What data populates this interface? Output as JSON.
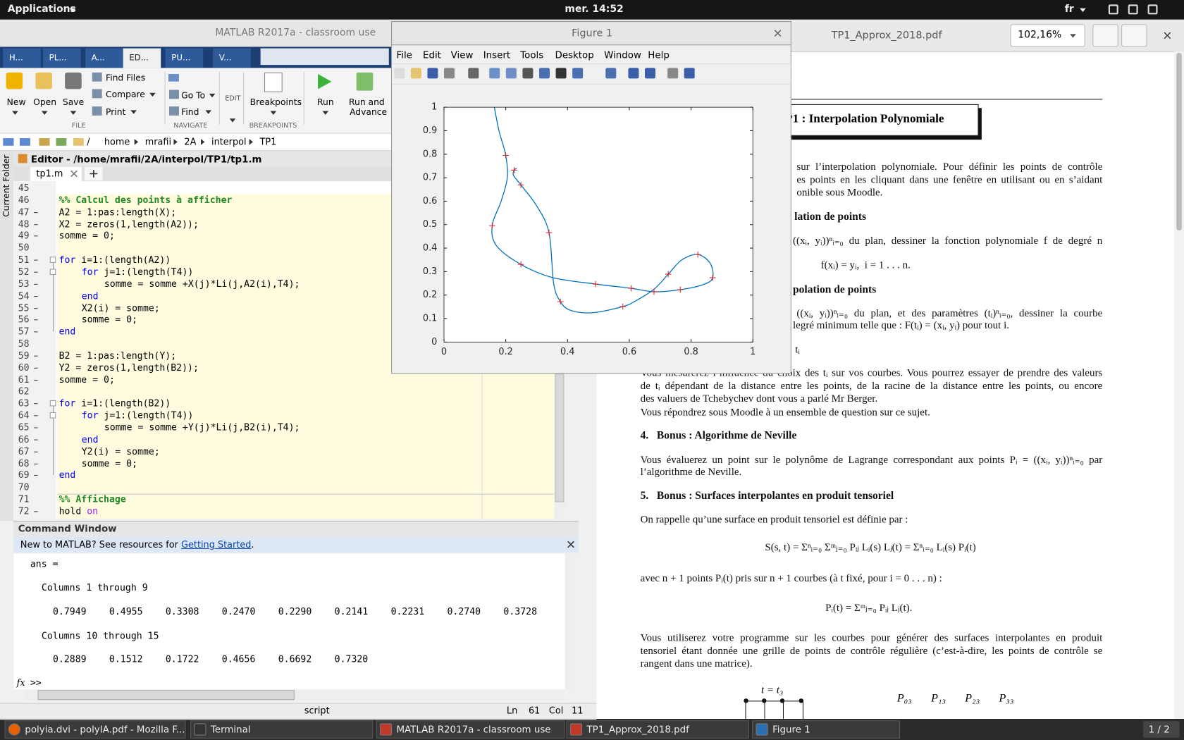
{
  "top_bar": {
    "menu": "Applications",
    "clock": "mer. 14:52",
    "language": "fr"
  },
  "matlab": {
    "title": "MATLAB R2017a - classroom use",
    "tabs": [
      "H...",
      "PL...",
      "A...",
      "ED...",
      "PU...",
      "V..."
    ],
    "toolstrip": {
      "new": "New",
      "open": "Open",
      "save": "Save",
      "find_files": "Find Files",
      "compare": "Compare",
      "print": "Print",
      "go_to": "Go To",
      "find": "Find",
      "edit": "EDIT",
      "breakpoints": "Breakpoints",
      "run": "Run",
      "run_advance": [
        "Run and",
        "Advance"
      ],
      "sections": [
        "FILE",
        "NAVIGATE",
        "BREAKPOINTS"
      ]
    },
    "path": [
      "/",
      "home",
      "mrafii",
      "2A",
      "interpol",
      "TP1"
    ],
    "current_folder": "Current Folder",
    "editor_title": "Editor - /home/mrafii/2A/interpol/TP1/tp1.m",
    "file_tab": "tp1.m",
    "code": [
      {
        "n": "45",
        "indent": 0,
        "parts": []
      },
      {
        "n": "46",
        "indent": 0,
        "parts": [
          {
            "t": "%% Calcul des points à afficher",
            "k": "comment"
          }
        ]
      },
      {
        "n": "47",
        "indent": 0,
        "parts": [
          {
            "t": "A2 = 1:pas:length(X);",
            "k": "code"
          }
        ]
      },
      {
        "n": "48",
        "indent": 0,
        "parts": [
          {
            "t": "X2 = zeros(1,length(A2));",
            "k": "code"
          }
        ]
      },
      {
        "n": "49",
        "indent": 0,
        "parts": [
          {
            "t": "somme = 0;",
            "k": "code"
          }
        ]
      },
      {
        "n": "50",
        "indent": 0,
        "parts": []
      },
      {
        "n": "51",
        "indent": 0,
        "parts": [
          {
            "t": "for",
            "k": "keyword"
          },
          {
            "t": " i=1:(length(A2))",
            "k": "code"
          }
        ]
      },
      {
        "n": "52",
        "indent": 4,
        "parts": [
          {
            "t": "for",
            "k": "keyword"
          },
          {
            "t": " j=1:(length(T4))",
            "k": "code"
          }
        ]
      },
      {
        "n": "53",
        "indent": 8,
        "parts": [
          {
            "t": "somme = somme +X(j)*Li(j,A2(i),T4);",
            "k": "code"
          }
        ]
      },
      {
        "n": "54",
        "indent": 4,
        "parts": [
          {
            "t": "end",
            "k": "keyword"
          }
        ]
      },
      {
        "n": "55",
        "indent": 4,
        "parts": [
          {
            "t": "X2(i) = somme;",
            "k": "code"
          }
        ]
      },
      {
        "n": "56",
        "indent": 4,
        "parts": [
          {
            "t": "somme = 0;",
            "k": "code"
          }
        ]
      },
      {
        "n": "57",
        "indent": 0,
        "parts": [
          {
            "t": "end",
            "k": "keyword"
          }
        ]
      },
      {
        "n": "58",
        "indent": 0,
        "parts": []
      },
      {
        "n": "59",
        "indent": 0,
        "parts": [
          {
            "t": "B2 = 1:pas:length(Y);",
            "k": "code"
          }
        ]
      },
      {
        "n": "60",
        "indent": 0,
        "parts": [
          {
            "t": "Y2 = zeros(1,length(B2));",
            "k": "code"
          }
        ]
      },
      {
        "n": "61",
        "indent": 0,
        "parts": [
          {
            "t": "somme = 0;",
            "k": "code"
          }
        ]
      },
      {
        "n": "62",
        "indent": 0,
        "parts": []
      },
      {
        "n": "63",
        "indent": 0,
        "parts": [
          {
            "t": "for",
            "k": "keyword"
          },
          {
            "t": " i=1:(length(B2))",
            "k": "code"
          }
        ]
      },
      {
        "n": "64",
        "indent": 4,
        "parts": [
          {
            "t": "for",
            "k": "keyword"
          },
          {
            "t": " j=1:(length(T4))",
            "k": "code"
          }
        ]
      },
      {
        "n": "65",
        "indent": 8,
        "parts": [
          {
            "t": "somme = somme +Y(j)*Li(j,B2(i),T4);",
            "k": "code"
          }
        ]
      },
      {
        "n": "66",
        "indent": 4,
        "parts": [
          {
            "t": "end",
            "k": "keyword"
          }
        ]
      },
      {
        "n": "67",
        "indent": 4,
        "parts": [
          {
            "t": "Y2(i) = somme;",
            "k": "code"
          }
        ]
      },
      {
        "n": "68",
        "indent": 4,
        "parts": [
          {
            "t": "somme = 0;",
            "k": "code"
          }
        ]
      },
      {
        "n": "69",
        "indent": 0,
        "parts": [
          {
            "t": "end",
            "k": "keyword"
          }
        ]
      },
      {
        "n": "70",
        "indent": 0,
        "parts": []
      },
      {
        "n": "71",
        "indent": 0,
        "parts": [
          {
            "t": "%% Affichage",
            "k": "comment"
          }
        ]
      },
      {
        "n": "72",
        "indent": 0,
        "parts": [
          {
            "t": "hold ",
            "k": "code"
          },
          {
            "t": "on",
            "k": "string"
          }
        ]
      }
    ],
    "command_window": {
      "title": "Command Window",
      "banner": "New to MATLAB? See resources for ",
      "link": "Getting Started",
      "banner_end": ".",
      "output": {
        "ans": "ans =",
        "head1": "Columns 1 through 9",
        "row1": [
          "0.7949",
          "0.4955",
          "0.3308",
          "0.2470",
          "0.2290",
          "0.2141",
          "0.2231",
          "0.2740",
          "0.3728"
        ],
        "head2": "Columns 10 through 15",
        "row2": [
          "0.2889",
          "0.1512",
          "0.1722",
          "0.4656",
          "0.6692",
          "0.7320"
        ]
      },
      "fx": "fx",
      "prompt": ">>"
    },
    "status": {
      "mode": "script",
      "ln_label": "Ln",
      "ln": "61",
      "col_label": "Col",
      "col": "11"
    }
  },
  "figure": {
    "title": "Figure 1",
    "menus": [
      "File",
      "Edit",
      "View",
      "Insert",
      "Tools",
      "Desktop",
      "Window",
      "Help"
    ]
  },
  "chart_data": {
    "type": "line",
    "series": [
      {
        "type": "line",
        "color": "#0072bd",
        "x": [
          0.163,
          0.178,
          0.2,
          0.205,
          0.185,
          0.156,
          0.17,
          0.249,
          0.35,
          0.491,
          0.606,
          0.68,
          0.765,
          0.84,
          0.87,
          0.862,
          0.822,
          0.77,
          0.726,
          0.68,
          0.62,
          0.579,
          0.48,
          0.41,
          0.377,
          0.355,
          0.34,
          0.3,
          0.249,
          0.225,
          0.227,
          0.235
        ],
        "values": [
          1.0,
          0.9,
          0.7949,
          0.7,
          0.6,
          0.4955,
          0.41,
          0.3308,
          0.275,
          0.247,
          0.229,
          0.2141,
          0.2231,
          0.245,
          0.274,
          0.335,
          0.3728,
          0.35,
          0.2889,
          0.225,
          0.175,
          0.1512,
          0.125,
          0.135,
          0.1722,
          0.25,
          0.4656,
          0.58,
          0.6692,
          0.71,
          0.732,
          0.74
        ]
      },
      {
        "type": "scatter",
        "marker": "+",
        "color": "#d62728",
        "x": [
          0.2,
          0.156,
          0.249,
          0.491,
          0.606,
          0.68,
          0.765,
          0.87,
          0.822,
          0.726,
          0.579,
          0.377,
          0.34,
          0.249,
          0.227
        ],
        "values": [
          0.7949,
          0.4955,
          0.3308,
          0.247,
          0.229,
          0.2141,
          0.2231,
          0.274,
          0.3728,
          0.2889,
          0.1512,
          0.1722,
          0.4656,
          0.6692,
          0.732
        ]
      }
    ],
    "xlim": [
      0,
      1
    ],
    "ylim": [
      0,
      1
    ],
    "xticks": [
      0,
      0.2,
      0.4,
      0.6,
      0.8,
      1
    ],
    "yticks": [
      0,
      0.1,
      0.2,
      0.3,
      0.4,
      0.5,
      0.6,
      0.7,
      0.8,
      0.9,
      1
    ],
    "box": true
  },
  "pdf": {
    "title": "TP1_Approx_2018.pdf",
    "zoom": "102,16%",
    "page_title": "P1 : Interpolation Polynomiale",
    "lines": [
      "sur l’interpolation polynomiale. Pour définir les points de contrôle",
      "es points en les cliquant dans une fenêtre en utilisant ou en s’aidant",
      "onible sous Moodle.",
      "lation de points",
      "((xᵢ, yᵢ))ⁿᵢ₌₀ du plan, dessiner la fonction polynomiale f de degré n",
      "f(xᵢ) = yᵢ,  i = 1 . . . n.",
      "polation de points",
      "((xᵢ, yᵢ))ⁿᵢ₌₀ du plan, et des paramètres (tᵢ)ⁿᵢ₌₀, dessiner la courbe",
      "legré minimum telle que : F(tᵢ) = (xᵢ, yᵢ) pour tout i.",
      "tᵢ",
      "Vous mesurerez l’influence du choix des tᵢ sur vos courbes. Vous pourrez essayer de prendre des valeurs",
      "de tᵢ dépendant de la distance entre les points, de la racine de la distance entre les points, ou encore",
      "des valuers de Tchebychev dont vous a parlé Mr Berger.",
      "Vous répondrez sous Moodle à un ensemble de question sur ce sujet.",
      "4.   Bonus : Algorithme de Neville",
      "Vous évaluerez un point sur le polynôme de Lagrange correspondant aux points Pᵢ = ((xᵢ, yᵢ))ⁿᵢ₌₀ par",
      "l’algorithme de Neville.",
      "5.   Bonus : Surfaces interpolantes en produit tensoriel",
      "On rappelle qu’une surface en produit tensoriel est définie par :",
      "S(s, t) = Σⁿᵢ₌₀ Σᵐⱼ₌₀ Pᵢⱼ Lᵢ(s) Lⱼ(t) = Σⁿᵢ₌₀ Lᵢ(s) Pᵢ(t)",
      "avec n + 1 points Pᵢ(t) pris sur n + 1 courbes (à t fixé, pour i = 0 . . . n) :",
      "Pᵢ(t) = Σᵐⱼ₌₀ Pᵢⱼ Lⱼ(t).",
      "Vous utiliserez votre programme sur les courbes pour générer des surfaces interpolantes en produit",
      "tensoriel étant donnée une grille de points de contrôle régulière (c’est-à-dire, les points de contrôle se",
      "rangent dans une matrice)."
    ],
    "grid_t": "t = t₃",
    "grid_p": [
      "P₀₃",
      "P₁₃",
      "P₂₃",
      "P₃₃"
    ]
  },
  "taskbar": {
    "items": [
      "polyia.dvi - polyIA.pdf - Mozilla F...",
      "Terminal",
      "MATLAB R2017a - classroom use",
      "TP1_Approx_2018.pdf",
      "Figure 1"
    ],
    "pager": "1 / 2"
  }
}
